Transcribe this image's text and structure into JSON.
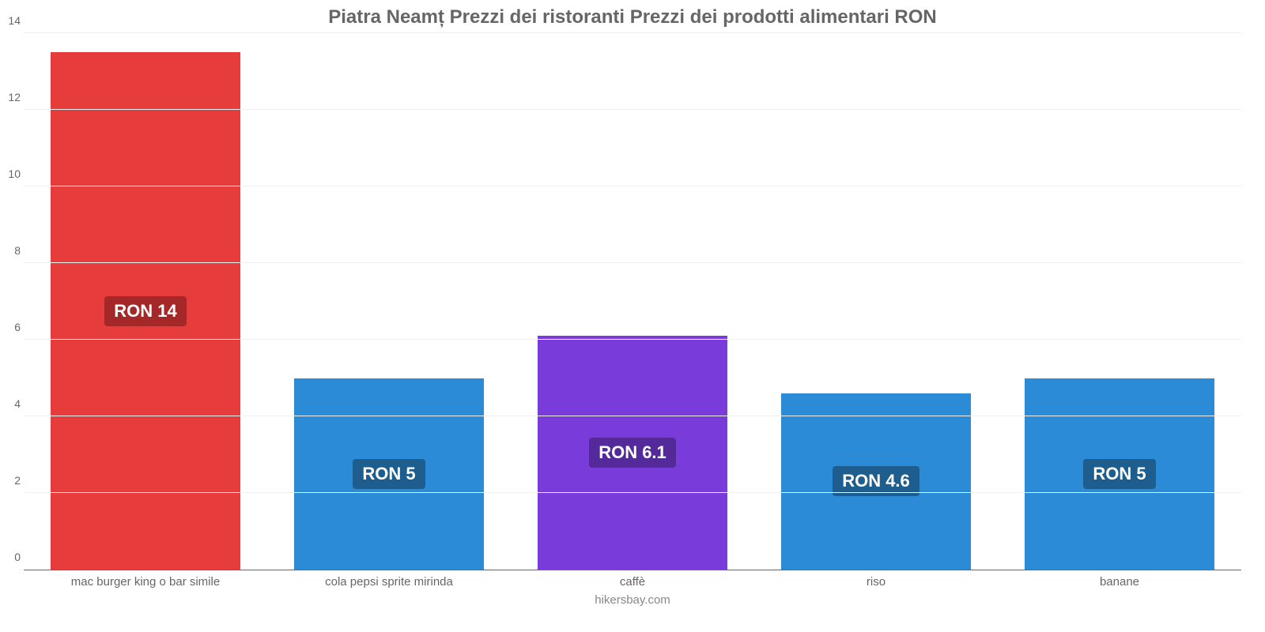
{
  "chart": {
    "type": "bar",
    "title": "Piatra Neamț Prezzi dei ristoranti Prezzi dei prodotti alimentari RON",
    "title_fontsize": 24,
    "title_color": "#666666",
    "background_color": "#ffffff",
    "grid_color": "#f0f0f0",
    "axis_color": "#666666",
    "tick_fontsize": 14,
    "xlabel_fontsize": 15,
    "bar_width_pct": 78,
    "ylim": [
      0,
      14
    ],
    "yticks": [
      0,
      2,
      4,
      6,
      8,
      10,
      12,
      14
    ],
    "categories": [
      "mac burger king o bar simile",
      "cola pepsi sprite mirinda",
      "caffè",
      "riso",
      "banane"
    ],
    "values": [
      13.5,
      5.0,
      6.1,
      4.6,
      5.0
    ],
    "value_labels": [
      "RON 14",
      "RON 5",
      "RON 6.1",
      "RON 4.6",
      "RON 5"
    ],
    "bar_colors": [
      "#e73c3c",
      "#2b8bd6",
      "#7a3bdb",
      "#2b8bd6",
      "#2b8bd6"
    ],
    "badge_colors": [
      "#a42828",
      "#1e5e8f",
      "#54299a",
      "#1e5e8f",
      "#1e5e8f"
    ],
    "badge_fontsize": 22,
    "footer": "hikersbay.com",
    "footer_color": "#888888"
  }
}
